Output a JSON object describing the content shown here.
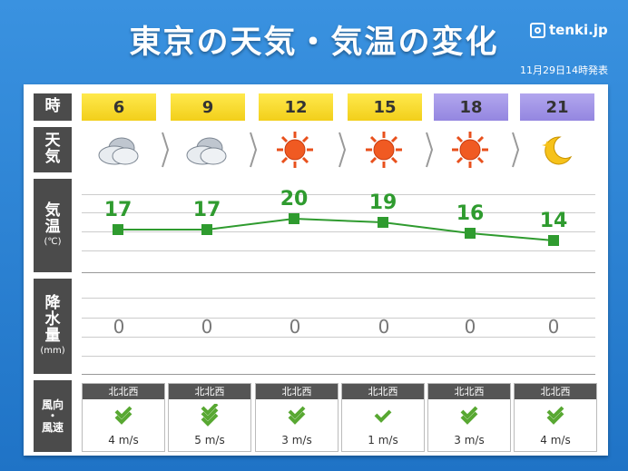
{
  "title": "東京の天気・気温の変化",
  "brand": "tenki.jp",
  "issued": "11月29日14時発表",
  "row_labels": {
    "time": "時",
    "weather": [
      "天",
      "気"
    ],
    "temp": [
      "気",
      "温",
      "(℃)"
    ],
    "precip": [
      "降",
      "水",
      "量",
      "(mm)"
    ],
    "wind": [
      "風向",
      "・",
      "風速"
    ]
  },
  "slots": [
    {
      "hour": "6",
      "period": "day",
      "weather_icon": "cloud-icon",
      "temp": 17,
      "temp_label": "17",
      "precip": "0",
      "wind_dir": "北北西",
      "wind_speed": "4 m/s"
    },
    {
      "hour": "9",
      "period": "day",
      "weather_icon": "cloud-icon",
      "temp": 17,
      "temp_label": "17",
      "precip": "0",
      "wind_dir": "北北西",
      "wind_speed": "5 m/s"
    },
    {
      "hour": "12",
      "period": "day",
      "weather_icon": "sun-icon",
      "temp": 20,
      "temp_label": "20",
      "precip": "0",
      "wind_dir": "北北西",
      "wind_speed": "3 m/s"
    },
    {
      "hour": "15",
      "period": "day",
      "weather_icon": "sun-icon",
      "temp": 19,
      "temp_label": "19",
      "precip": "0",
      "wind_dir": "北北西",
      "wind_speed": "1 m/s"
    },
    {
      "hour": "18",
      "period": "night",
      "weather_icon": "sun-icon",
      "temp": 16,
      "temp_label": "16",
      "precip": "0",
      "wind_dir": "北北西",
      "wind_speed": "3 m/s"
    },
    {
      "hour": "21",
      "period": "night",
      "weather_icon": "moon-icon",
      "temp": 14,
      "temp_label": "14",
      "precip": "0",
      "wind_dir": "北北西",
      "wind_speed": "4 m/s"
    }
  ],
  "colors": {
    "temp_line": "#2f9b2f",
    "day": "#f5d52a",
    "night": "#a396e8",
    "background": "#2f86d6"
  }
}
